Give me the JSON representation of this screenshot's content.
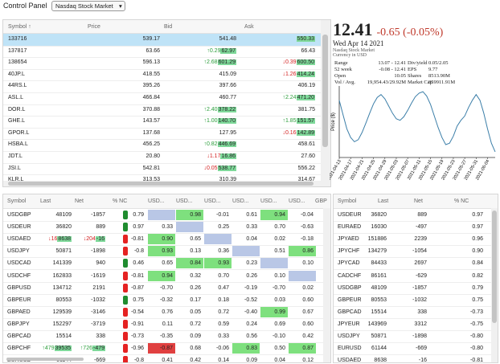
{
  "control_panel": {
    "label": "Control Panel",
    "market": "Nasdaq Stock Market"
  },
  "watchlist": {
    "columns": [
      "Symbol ↑",
      "Price",
      "Bid",
      "Ask"
    ],
    "rows": [
      {
        "symbol": "133716",
        "price": "539.17",
        "bid": "541.48",
        "ask": "550.33",
        "selected": true,
        "highlight": "ask"
      },
      {
        "symbol": "137817",
        "price": "63.66",
        "bid_change": "↑0.29",
        "bid": "62.97",
        "ask": "66.43"
      },
      {
        "symbol": "138654",
        "price": "596.13",
        "bid_change": "↑2.68",
        "bid": "601.29",
        "ask_change": "↓0.39",
        "ask": "600.50"
      },
      {
        "symbol": "40JP.L",
        "price": "418.55",
        "bid": "415.09",
        "ask_change": "↓1.26",
        "ask": "414.24"
      },
      {
        "symbol": "44RS.L",
        "price": "395.26",
        "bid": "397.66",
        "ask": "406.19"
      },
      {
        "symbol": "ASL.L",
        "price": "466.84",
        "bid": "460.77",
        "ask_change": "↑2.24",
        "ask": "471.20"
      },
      {
        "symbol": "DOR.L",
        "price": "370.88",
        "bid_change": "↑2.40",
        "bid": "378.22",
        "ask": "381.75"
      },
      {
        "symbol": "GHE.L",
        "price": "143.57",
        "bid_change": "↑1.00",
        "bid": "140.70",
        "ask_change": "↑1.85",
        "ask": "151.57"
      },
      {
        "symbol": "GPOR.L",
        "price": "137.68",
        "bid": "127.95",
        "ask_change": "↓0.16",
        "ask": "142.89"
      },
      {
        "symbol": "HSBA.L",
        "price": "456.25",
        "bid_change": "↑0.82",
        "bid": "446.69",
        "ask": "458.61"
      },
      {
        "symbol": "JDT.L",
        "price": "20.80",
        "bid_change": "↓1.17",
        "bid": "16.86",
        "ask": "27.60"
      },
      {
        "symbol": "JSI.L",
        "price": "542.81",
        "bid_change": "↓0.05",
        "bid": "538.77",
        "ask": "556.22"
      },
      {
        "symbol": "KLR.L",
        "price": "313.53",
        "bid": "310.39",
        "ask": "314.67"
      }
    ]
  },
  "quote": {
    "price": "12.41",
    "change": "-0.65 (-0.05%)",
    "date": "Wed Apr 14 2021",
    "exchange": "Nasdaq Stock Market",
    "currency": "Currency in USD",
    "stats": [
      [
        "Range",
        "13.07 - 12.41",
        "Div/yield",
        "0.05/2.05"
      ],
      [
        "52 week",
        "-0.08 - 12.41",
        "EPS",
        "9.77"
      ],
      [
        "Open",
        "10.05",
        "Shares",
        "8513.90M"
      ],
      [
        "Vol / Avg.",
        "19,954.43/29.92M",
        "Market Cap",
        "859911.91M"
      ]
    ]
  },
  "chart_data": {
    "type": "line",
    "y_label": "Price ($)",
    "color": "#3b7ea8",
    "ylim": [
      0,
      100
    ],
    "x": [
      "2021-04-13",
      null,
      null,
      "2021-04-17",
      null,
      null,
      "2021-04-21",
      null,
      null,
      "2021-04-25",
      null,
      null,
      "2021-04-29",
      null,
      null,
      "2021-05-03",
      null,
      null,
      "2021-05-07",
      null,
      null,
      "2021-05-11",
      null,
      null,
      "2021-05-15",
      null,
      null,
      "2021-05-19",
      null,
      null,
      "2021-05-23",
      null,
      null,
      "2021-05-27",
      null,
      null,
      "2021-05-31",
      null,
      null,
      "2021-06-04",
      null,
      null
    ],
    "values": [
      80,
      60,
      40,
      28,
      22,
      25,
      35,
      48,
      62,
      75,
      84,
      88,
      82,
      72,
      62,
      54,
      52,
      57,
      66,
      76,
      85,
      90,
      92,
      86,
      74,
      58,
      42,
      28,
      18,
      20,
      30,
      44,
      52,
      58,
      70,
      80,
      88,
      80,
      62,
      40,
      20,
      8
    ]
  },
  "correlation": {
    "columns": [
      "Symbol",
      "Last",
      "Net",
      "% NC",
      "USD...",
      "USD...",
      "USD...",
      "USD...",
      "USD...",
      "USD...",
      "GBP"
    ],
    "rows": [
      {
        "symbol": "USDGBP",
        "last": "48109",
        "net": "-1857",
        "nc": "0.79",
        "cells": [
          null,
          "0.98",
          "-0.01",
          "0.61",
          "0.94",
          "-0.04"
        ]
      },
      {
        "symbol": "USDEUR",
        "last": "36820",
        "net": "889",
        "nc": "0.97",
        "cells": [
          "0.33",
          null,
          "0.25",
          "0.33",
          "0.70",
          "-0.63"
        ]
      },
      {
        "symbol": "USDAED",
        "last_change": "↓16",
        "last": "8638",
        "net_change": "↓204",
        "net": "-16",
        "nc": "-0.81",
        "cells": [
          "0.90",
          "0.65",
          null,
          "0.04",
          "0.02",
          "-0.18"
        ]
      },
      {
        "symbol": "USDJPY",
        "last": "50871",
        "net": "-1898",
        "nc": "-0.8",
        "cells": [
          "0.93",
          "0.13",
          "0.36",
          null,
          "0.51",
          "0.86"
        ]
      },
      {
        "symbol": "USDCAD",
        "last": "141339",
        "net": "940",
        "nc": "0.46",
        "cells": [
          "0.65",
          "0.84",
          "0.93",
          "0.23",
          null,
          "0.10"
        ]
      },
      {
        "symbol": "USDCHF",
        "last": "162833",
        "net": "-1619",
        "nc": "-0.81",
        "cells": [
          "0.94",
          "0.32",
          "0.70",
          "0.26",
          "0.10",
          null
        ]
      },
      {
        "symbol": "GBPUSD",
        "last": "134712",
        "net": "2191",
        "nc": "-0.87",
        "cells": [
          "-0.70",
          "0.26",
          "0.47",
          "-0.19",
          "-0.70",
          "0.02"
        ]
      },
      {
        "symbol": "GBPEUR",
        "last": "80553",
        "net": "-1032",
        "nc": "0.75",
        "cells": [
          "-0.32",
          "0.17",
          "0.18",
          "-0.52",
          "0.03",
          "0.60"
        ]
      },
      {
        "symbol": "GBPAED",
        "last": "129539",
        "net": "-3146",
        "nc": "-0.54",
        "cells": [
          "0.76",
          "0.05",
          "0.72",
          "-0.40",
          "0.99",
          "0.67"
        ]
      },
      {
        "symbol": "GBPJPY",
        "last": "152297",
        "net": "-3719",
        "nc": "-0.91",
        "cells": [
          "0.11",
          "0.72",
          "0.59",
          "0.24",
          "0.69",
          "0.60"
        ]
      },
      {
        "symbol": "GBPCAD",
        "last": "15514",
        "net": "338",
        "nc": "-0.73",
        "cells": [
          "-0.35",
          "0.09",
          "0.33",
          "0.56",
          "-0.10",
          "0.42"
        ]
      },
      {
        "symbol": "GBPCHF",
        "last_change": "↑479",
        "last": "39535",
        "net_change": "↑726",
        "net": "-479",
        "nc": "-0.96",
        "cells": [
          "-0.87",
          "0.68",
          "-0.06",
          "0.83",
          "0.50",
          "0.87"
        ]
      },
      {
        "symbol": "EURUSD",
        "last": "61144",
        "net": "-669",
        "nc": "-0.8",
        "cells": [
          "0.41",
          "0.42",
          "0.14",
          "0.09",
          "0.04",
          "0.12"
        ]
      }
    ]
  },
  "movers": {
    "columns": [
      "Symbol",
      "Last",
      "Net",
      "% NC"
    ],
    "rows": [
      [
        "USDEUR",
        "36820",
        "889",
        "0.97"
      ],
      [
        "EURAED",
        "16030",
        "-497",
        "0.97"
      ],
      [
        "JPYAED",
        "151886",
        "2239",
        "0.96"
      ],
      [
        "JPYCHF",
        "134279",
        "-1054",
        "0.90"
      ],
      [
        "JPYCAD",
        "84433",
        "2697",
        "0.84"
      ],
      [
        "CADCHF",
        "86161",
        "-629",
        "0.82"
      ],
      [
        "USDGBP",
        "48109",
        "-1857",
        "0.79"
      ],
      [
        "GBPEUR",
        "80553",
        "-1032",
        "0.75"
      ],
      [
        "GBPCAD",
        "15514",
        "338",
        "-0.73"
      ],
      [
        "JPYEUR",
        "143969",
        "3312",
        "-0.75"
      ],
      [
        "USDJPY",
        "50871",
        "-1898",
        "-0.80"
      ],
      [
        "EURUSD",
        "61144",
        "-669",
        "-0.80"
      ],
      [
        "USDAED",
        "8638",
        "-16",
        "-0.81"
      ]
    ]
  }
}
